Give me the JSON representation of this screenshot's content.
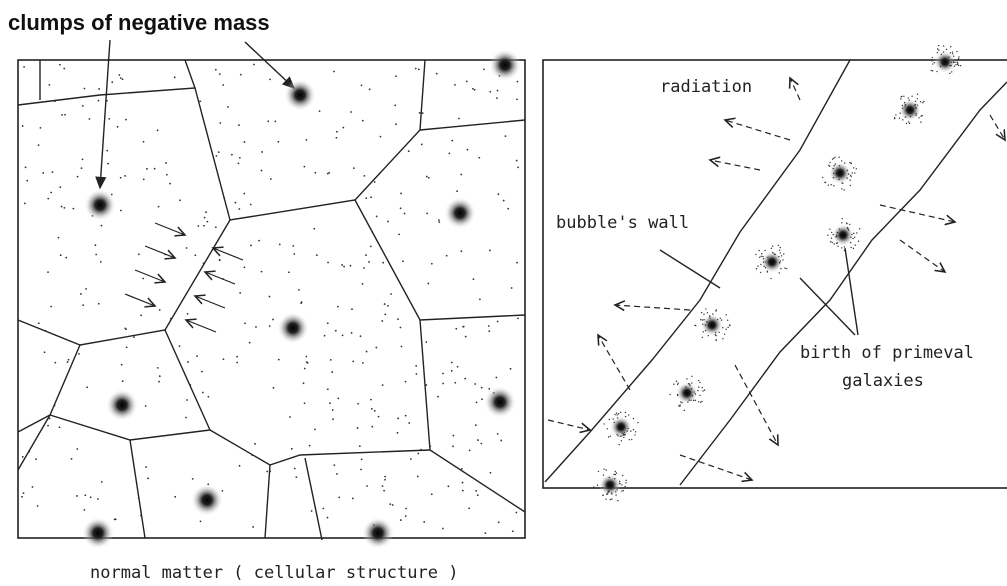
{
  "labels": {
    "negative_mass": "clumps of negative mass",
    "radiation": "radiation",
    "bubble_wall": "bubble's wall",
    "galaxies": [
      "birth of primeval",
      "galaxies"
    ],
    "normal_matter": "normal matter ( cellular structure )"
  }
}
